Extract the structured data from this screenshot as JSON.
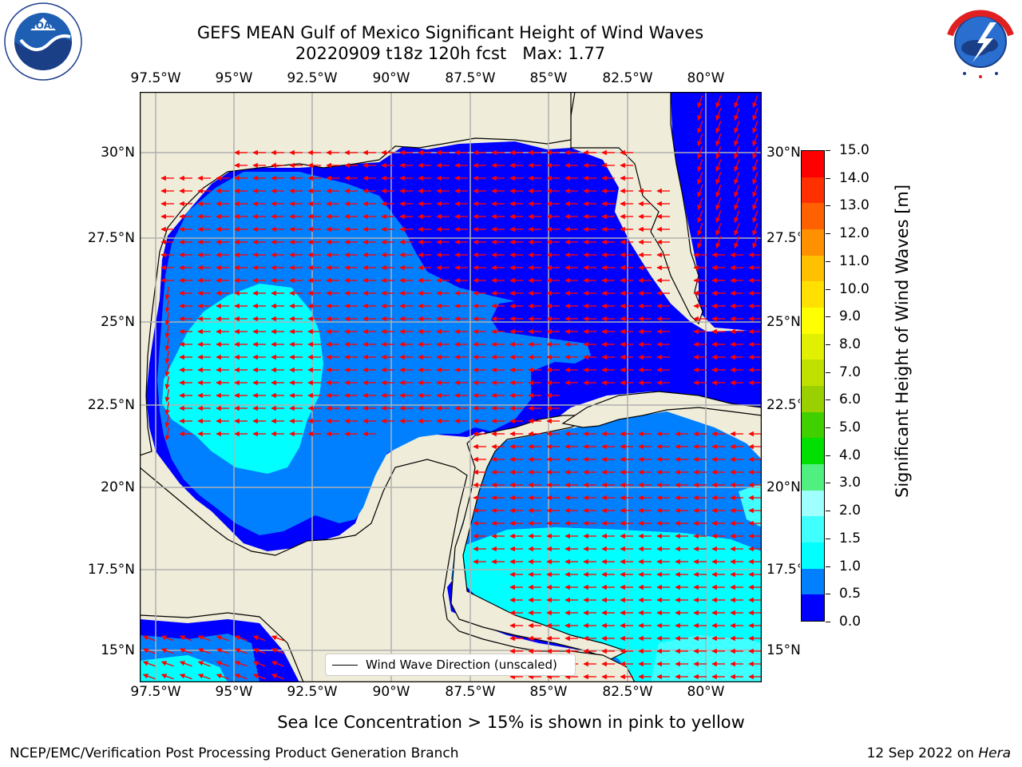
{
  "title": {
    "line1": "GEFS MEAN Gulf of Mexico Significant Height of Wind Waves",
    "line2": "20220909 t18z 120h fcst   Max: 1.77"
  },
  "logos": {
    "left": {
      "name": "NOAA",
      "ring_text": "NATIONAL OCEANIC AND ATMOSPHERIC ADMINISTRATION · U.S. DEPARTMENT OF COMMERCE"
    },
    "right": {
      "ring_text": "NATIONAL WEATHER SERVICE"
    }
  },
  "map": {
    "lon_ticks": [
      "97.5°W",
      "95°W",
      "92.5°W",
      "90°W",
      "87.5°W",
      "85°W",
      "82.5°W",
      "80°W"
    ],
    "lat_ticks": [
      "30°N",
      "27.5°N",
      "25°N",
      "22.5°N",
      "20°N",
      "17.5°N",
      "15°N"
    ],
    "lon_values": [
      -97.5,
      -95,
      -92.5,
      -90,
      -87.5,
      -85,
      -82.5,
      -80
    ],
    "lat_values": [
      30,
      27.5,
      25,
      22.5,
      20,
      17.5,
      15
    ],
    "colors": {
      "land": "#efecd9",
      "grid": "#b0b0b0",
      "arrow": "#ff0000",
      "coast": "#000000"
    },
    "legend": {
      "label": "Wind Wave Direction (unscaled)"
    }
  },
  "colorbar": {
    "label": "Significant Height of Wind Waves [m]",
    "ticks": [
      "15.0",
      "14.0",
      "13.0",
      "12.0",
      "11.0",
      "10.0",
      "9.0",
      "8.0",
      "7.0",
      "6.0",
      "5.0",
      "4.0",
      "3.0",
      "2.0",
      "1.5",
      "1.0",
      "0.5",
      "0.0"
    ],
    "colors_bottom_to_top": [
      "#0000ff",
      "#0080ff",
      "#00ffff",
      "#40ffff",
      "#a0ffff",
      "#50f080",
      "#00e000",
      "#40d000",
      "#9ad000",
      "#c0e000",
      "#e0f000",
      "#ffff00",
      "#ffe000",
      "#ffc000",
      "#ff9000",
      "#ff6000",
      "#ff3000",
      "#ff0000"
    ]
  },
  "footer": {
    "note": "Sea Ice Concentration > 15% is shown in pink to yellow",
    "left": "NCEP/EMC/Verification Post Processing Product Generation Branch",
    "right_date": "12 Sep 2022 on ",
    "right_host": "Hera"
  }
}
